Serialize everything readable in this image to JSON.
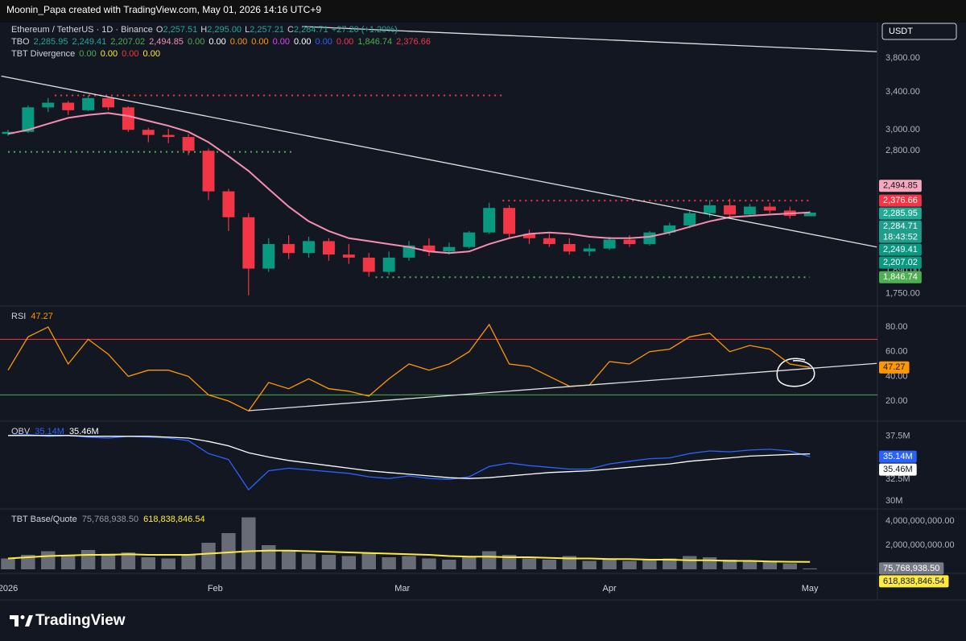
{
  "header": "Moonin_Papa created with TradingView.com, May 01, 2026 14:16 UTC+9",
  "footer": "TradingView",
  "chart_data": [
    {
      "type": "candlestick",
      "title": "Ethereum / TetherUS · 1D · Binance",
      "ohlc_legend": [
        {
          "label": "O",
          "value": "2,257.51"
        },
        {
          "label": "H",
          "value": "2,295.00"
        },
        {
          "label": "L",
          "value": "2,257.21"
        },
        {
          "label": "C",
          "value": "2,284.71"
        }
      ],
      "change": "+27.20 (+1.20%)",
      "indicators": [
        {
          "name": "TBO",
          "values": [
            {
              "text": "2,285.95",
              "color": "#26a69a"
            },
            {
              "text": "2,249.41",
              "color": "#26a69a"
            },
            {
              "text": "2,207.02",
              "color": "#4caf50"
            },
            {
              "text": "2,494.85",
              "color": "#f48fb1"
            },
            {
              "text": "0.00",
              "color": "#4caf50"
            },
            {
              "text": "0.00",
              "color": "#ffffff"
            },
            {
              "text": "0.00",
              "color": "#ff9800"
            },
            {
              "text": "0.00",
              "color": "#ff9800"
            },
            {
              "text": "0.00",
              "color": "#e040fb"
            },
            {
              "text": "0.00",
              "color": "#ffffff"
            },
            {
              "text": "0.00",
              "color": "#2962ff"
            },
            {
              "text": "0.00",
              "color": "#f23645"
            },
            {
              "text": "1,846.74",
              "color": "#4caf50"
            },
            {
              "text": "2,376.66",
              "color": "#f23645"
            }
          ]
        },
        {
          "name": "TBT Divergence",
          "values": [
            {
              "text": "0.00",
              "color": "#4caf50"
            },
            {
              "text": "0.00",
              "color": "#ffeb3b"
            },
            {
              "text": "0.00",
              "color": "#f23645"
            },
            {
              "text": "0.00",
              "color": "#ffeb3b"
            }
          ]
        }
      ],
      "currency": "USDT",
      "x": [
        0,
        3,
        6,
        9,
        12,
        15,
        18,
        21,
        24,
        27,
        30,
        33,
        36,
        39,
        42,
        45,
        48,
        51,
        54,
        57,
        60,
        63,
        66,
        69,
        72,
        75,
        78,
        81,
        84,
        87,
        90,
        93,
        96,
        99,
        102,
        105,
        108,
        111,
        114,
        117,
        120
      ],
      "xlim": [
        -1.2,
        130.1
      ],
      "xticks": [
        {
          "value": 0,
          "label": "2026"
        },
        {
          "value": 31,
          "label": "Feb"
        },
        {
          "value": 59,
          "label": "Mar"
        },
        {
          "value": 90,
          "label": "Apr"
        },
        {
          "value": 120,
          "label": "May"
        }
      ],
      "open": [
        2960,
        2980,
        3230,
        3280,
        3200,
        3330,
        3230,
        3000,
        2950,
        2930,
        2800,
        2450,
        2250,
        1900,
        2060,
        2000,
        2080,
        1990,
        1970,
        1880,
        1970,
        2050,
        2010,
        2040,
        2140,
        2320,
        2130,
        2100,
        2060,
        2010,
        2030,
        2090,
        2060,
        2140,
        2190,
        2280,
        2340,
        2270,
        2330,
        2300,
        2257.51
      ],
      "high": [
        3000,
        3250,
        3330,
        3300,
        3360,
        3350,
        3240,
        3020,
        3010,
        2960,
        2820,
        2470,
        2280,
        2100,
        2120,
        2110,
        2100,
        2060,
        2000,
        2010,
        2080,
        2100,
        2070,
        2150,
        2360,
        2340,
        2160,
        2130,
        2100,
        2060,
        2110,
        2120,
        2150,
        2210,
        2300,
        2380,
        2390,
        2350,
        2360,
        2330,
        2295
      ],
      "low": [
        2940,
        2970,
        3180,
        3150,
        3190,
        3200,
        2980,
        2880,
        2870,
        2760,
        2380,
        2150,
        1740,
        1880,
        1960,
        1970,
        1950,
        1930,
        1850,
        1860,
        1950,
        1980,
        1990,
        2030,
        2130,
        2100,
        2060,
        2040,
        1990,
        1980,
        2020,
        2040,
        2050,
        2120,
        2170,
        2250,
        2250,
        2260,
        2280,
        2240,
        2257.21
      ],
      "close": [
        2980,
        3230,
        3280,
        3200,
        3330,
        3230,
        3000,
        2950,
        2930,
        2800,
        2450,
        2250,
        1900,
        2060,
        2000,
        2080,
        1990,
        1970,
        1880,
        1970,
        2050,
        2010,
        2040,
        2140,
        2320,
        2130,
        2100,
        2060,
        2010,
        2030,
        2090,
        2060,
        2140,
        2190,
        2280,
        2340,
        2270,
        2330,
        2300,
        2260,
        2284.71
      ],
      "up_color": "#089981",
      "down_color": "#f23645",
      "series": [
        {
          "name": "TBO",
          "color": "#f48fb1",
          "values": [
            2960,
            3000,
            3060,
            3120,
            3150,
            3170,
            3140,
            3090,
            3040,
            2980,
            2880,
            2750,
            2620,
            2470,
            2330,
            2220,
            2150,
            2100,
            2080,
            2060,
            2040,
            2010,
            2000,
            2010,
            2060,
            2100,
            2130,
            2140,
            2130,
            2110,
            2100,
            2100,
            2110,
            2140,
            2180,
            2220,
            2250,
            2260,
            2270,
            2278,
            2285.95
          ]
        }
      ],
      "log_scale": true,
      "grid": false,
      "ylim": [
        1680,
        4270
      ],
      "yticks": [
        {
          "value": 1750,
          "label": "1,750.00"
        },
        {
          "value": 1890,
          "label": "1,890.00"
        },
        {
          "value": 2800,
          "label": "2,800.00"
        },
        {
          "value": 3000,
          "label": "3,000.00"
        },
        {
          "value": 3400,
          "label": "3,400.00"
        },
        {
          "value": 3800,
          "label": "3,800.00"
        }
      ],
      "levels": [
        {
          "value": 3360,
          "x": [
            7,
            74
          ],
          "color": "#f23645"
        },
        {
          "value": 2790,
          "x": [
            0,
            43
          ],
          "color": "#4caf50"
        },
        {
          "value": 2376.66,
          "x": [
            74,
            120
          ],
          "color": "#f23645"
        },
        {
          "value": 1846.74,
          "x": [
            55,
            120
          ],
          "color": "#4caf50"
        }
      ],
      "trendlines": [
        {
          "x": [
            -1,
            130
          ],
          "y": [
            3580,
            2040
          ],
          "color": "#e0e0e0"
        },
        {
          "x": [
            44,
            130
          ],
          "y": [
            4215,
            3880
          ],
          "color": "#e0e0e0"
        }
      ],
      "price_badges": [
        {
          "value": 2494.85,
          "label": "2,494.85",
          "color": "#f7a8bd"
        },
        {
          "value": 2376.66,
          "label": "2,376.66",
          "color": "#f23645"
        },
        {
          "value": 2285.95,
          "label": "2,285.95",
          "color": "#22ab94"
        },
        {
          "value": 2284.71,
          "label": "2,284.71",
          "countdown": "18:43:52",
          "color": "#1f9e8c"
        },
        {
          "value": 2249.41,
          "label": "2,249.41",
          "color": "#089981"
        },
        {
          "value": 2207.02,
          "label": "2,207.02",
          "color": "#089981"
        },
        {
          "value": 1846.74,
          "label": "1,846.74",
          "color": "#4caf50"
        }
      ]
    },
    {
      "type": "line",
      "title": "RSI",
      "series": [
        {
          "name": "RSI",
          "color": "#ff9800",
          "last_label": "47.27",
          "values": [
            45,
            72,
            80,
            50,
            70,
            58,
            40,
            45,
            45,
            40,
            25,
            20,
            12,
            35,
            30,
            38,
            30,
            28,
            24,
            38,
            50,
            45,
            50,
            60,
            82,
            50,
            48,
            40,
            32,
            33,
            52,
            50,
            60,
            62,
            72,
            75,
            60,
            65,
            62,
            50,
            47.27
          ]
        }
      ],
      "ylim": [
        3.7,
        97
      ],
      "yticks": [
        {
          "value": 20,
          "label": "20.00"
        },
        {
          "value": 40,
          "label": "40.00"
        },
        {
          "value": 60,
          "label": "60.00"
        },
        {
          "value": 80,
          "label": "80.00"
        }
      ],
      "levels": [
        {
          "value": 70,
          "color": "#f23645"
        },
        {
          "value": 25,
          "color": "#4caf50"
        }
      ],
      "trendlines": [
        {
          "x": [
            36,
            130
          ],
          "y": [
            12.2,
            50.5
          ],
          "color": "#e0e0e0"
        }
      ]
    },
    {
      "type": "line",
      "title": "OBV",
      "series": [
        {
          "name": "OBV",
          "color": "#2962ff",
          "last_label": "35.14M",
          "values": [
            37.6,
            37.7,
            37.5,
            37.6,
            37.4,
            37.3,
            37.5,
            37.4,
            37.3,
            37.0,
            35.5,
            34.8,
            31.3,
            33.5,
            33.8,
            33.6,
            33.4,
            33.2,
            32.8,
            32.6,
            32.9,
            32.6,
            32.5,
            32.8,
            34.0,
            34.4,
            34.1,
            33.9,
            33.7,
            33.7,
            34.3,
            34.6,
            34.9,
            35.0,
            35.5,
            35.8,
            35.7,
            35.9,
            36.0,
            35.8,
            35.14
          ]
        },
        {
          "color": "#ffffff",
          "last_label": "35.46M",
          "values": [
            37.6,
            37.6,
            37.6,
            37.6,
            37.5,
            37.5,
            37.5,
            37.5,
            37.4,
            37.3,
            36.9,
            36.4,
            35.6,
            35.1,
            34.7,
            34.4,
            34.1,
            33.8,
            33.5,
            33.3,
            33.1,
            32.9,
            32.7,
            32.6,
            32.7,
            32.9,
            33.1,
            33.3,
            33.4,
            33.5,
            33.7,
            33.9,
            34.1,
            34.3,
            34.6,
            34.8,
            35.0,
            35.2,
            35.3,
            35.4,
            35.46
          ]
        }
      ],
      "ylim": [
        29.07,
        39.26
      ],
      "yticks": [
        {
          "value": 30,
          "label": "30M"
        },
        {
          "value": 32.5,
          "label": "32.5M"
        },
        {
          "value": 37.5,
          "label": "37.5M"
        }
      ]
    },
    {
      "type": "bar",
      "title": "TBT Base/Quote",
      "series": [
        {
          "color": "#787b86",
          "last_label": "75,768,938.50",
          "values": [
            900000000.0,
            1200000000.0,
            1500000000.0,
            1100000000.0,
            1600000000.0,
            1300000000.0,
            1400000000.0,
            1000000000.0,
            900000000.0,
            1200000000.0,
            2200000000.0,
            3000000000.0,
            4300000000.0,
            2000000000.0,
            1500000000.0,
            1300000000.0,
            1200000000.0,
            1100000000.0,
            1400000000.0,
            1000000000.0,
            1100000000.0,
            900000000.0,
            800000000.0,
            1000000000.0,
            1500000000.0,
            1200000000.0,
            900000000.0,
            800000000.0,
            1100000000.0,
            700000000.0,
            900000000.0,
            700000000.0,
            800000000.0,
            900000000.0,
            1100000000.0,
            1000000000.0,
            800000000.0,
            700000000.0,
            600000000.0,
            500000000.0,
            75768938.5
          ]
        },
        {
          "color": "#ffeb3b",
          "last_label": "618,838,846.54",
          "values": [
            900000000.0,
            1000000000.0,
            1100000000.0,
            1150000000.0,
            1200000000.0,
            1200000000.0,
            1250000000.0,
            1200000000.0,
            1200000000.0,
            1200000000.0,
            1300000000.0,
            1400000000.0,
            1500000000.0,
            1550000000.0,
            1550000000.0,
            1500000000.0,
            1450000000.0,
            1400000000.0,
            1350000000.0,
            1300000000.0,
            1250000000.0,
            1200000000.0,
            1100000000.0,
            1050000000.0,
            1050000000.0,
            1000000000.0,
            1000000000.0,
            950000000.0,
            900000000.0,
            900000000.0,
            850000000.0,
            850000000.0,
            800000000.0,
            800000000.0,
            750000000.0,
            750000000.0,
            700000000.0,
            700000000.0,
            650000000.0,
            630000000.0,
            618838846.54
          ]
        }
      ],
      "ylim": [
        -333333333,
        5000000000
      ],
      "yticks": [
        {
          "value": 2000000000,
          "label": "2,000,000,000.00"
        },
        {
          "value": 4000000000,
          "label": "4,000,000,000.00"
        }
      ]
    }
  ]
}
